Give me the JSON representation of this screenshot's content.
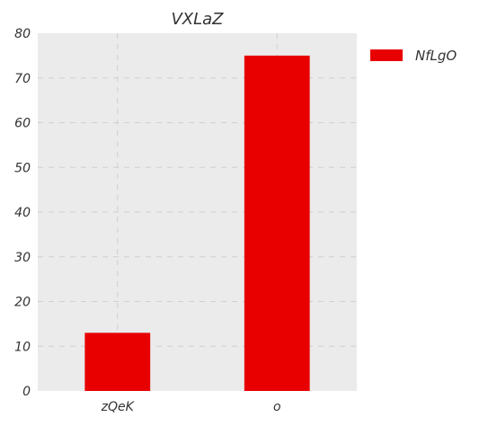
{
  "chart_data": {
    "type": "bar",
    "title": "VXLaZ",
    "categories": [
      "zQeK",
      "o"
    ],
    "series": [
      {
        "name": "NfLgO",
        "values": [
          13,
          75
        ]
      }
    ],
    "xlabel": "",
    "ylabel": "",
    "ylim": [
      0,
      80
    ],
    "yticks": [
      "0",
      "10",
      "20",
      "30",
      "40",
      "50",
      "60",
      "70",
      "80"
    ],
    "grid": true,
    "legend_position": "right-top",
    "colors": {
      "bar": "#e80000",
      "background": "#ebebeb",
      "grid": "#cfcfcf"
    }
  }
}
